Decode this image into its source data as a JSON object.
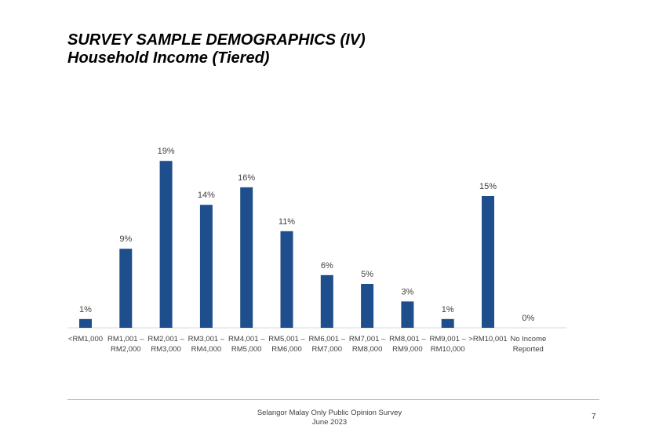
{
  "slide": {
    "title_line1": "SURVEY SAMPLE DEMOGRAPHICS (IV)",
    "title_line2": "Household Income (Tiered)",
    "footer_line1": "Selangor Malay Only Public Opinion Survey",
    "footer_line2": "June 2023",
    "page_number": "7"
  },
  "chart_data": {
    "type": "bar",
    "title": "Household Income (Tiered)",
    "xlabel": "",
    "ylabel": "",
    "ylim": [
      0,
      20
    ],
    "bar_color": "#1f4e8c",
    "categories": [
      [
        "<RM1,000"
      ],
      [
        "RM1,001 –",
        "RM2,000"
      ],
      [
        "RM2,001 –",
        "RM3,000"
      ],
      [
        "RM3,001 –",
        "RM4,000"
      ],
      [
        "RM4,001 –",
        "RM5,000"
      ],
      [
        "RM5,001 –",
        "RM6,000"
      ],
      [
        "RM6,001 –",
        "RM7,000"
      ],
      [
        "RM7,001 –",
        "RM8,000"
      ],
      [
        "RM8,001 –",
        "RM9,000"
      ],
      [
        "RM9,001 –",
        "RM10,000"
      ],
      [
        ">RM10,001"
      ],
      [
        "No Income",
        "Reported"
      ]
    ],
    "values": [
      1,
      9,
      19,
      14,
      16,
      11,
      6,
      5,
      3,
      1,
      15,
      0
    ],
    "labels": [
      "1%",
      "9%",
      "19%",
      "14%",
      "16%",
      "11%",
      "6%",
      "5%",
      "3%",
      "1%",
      "15%",
      "0%"
    ]
  }
}
